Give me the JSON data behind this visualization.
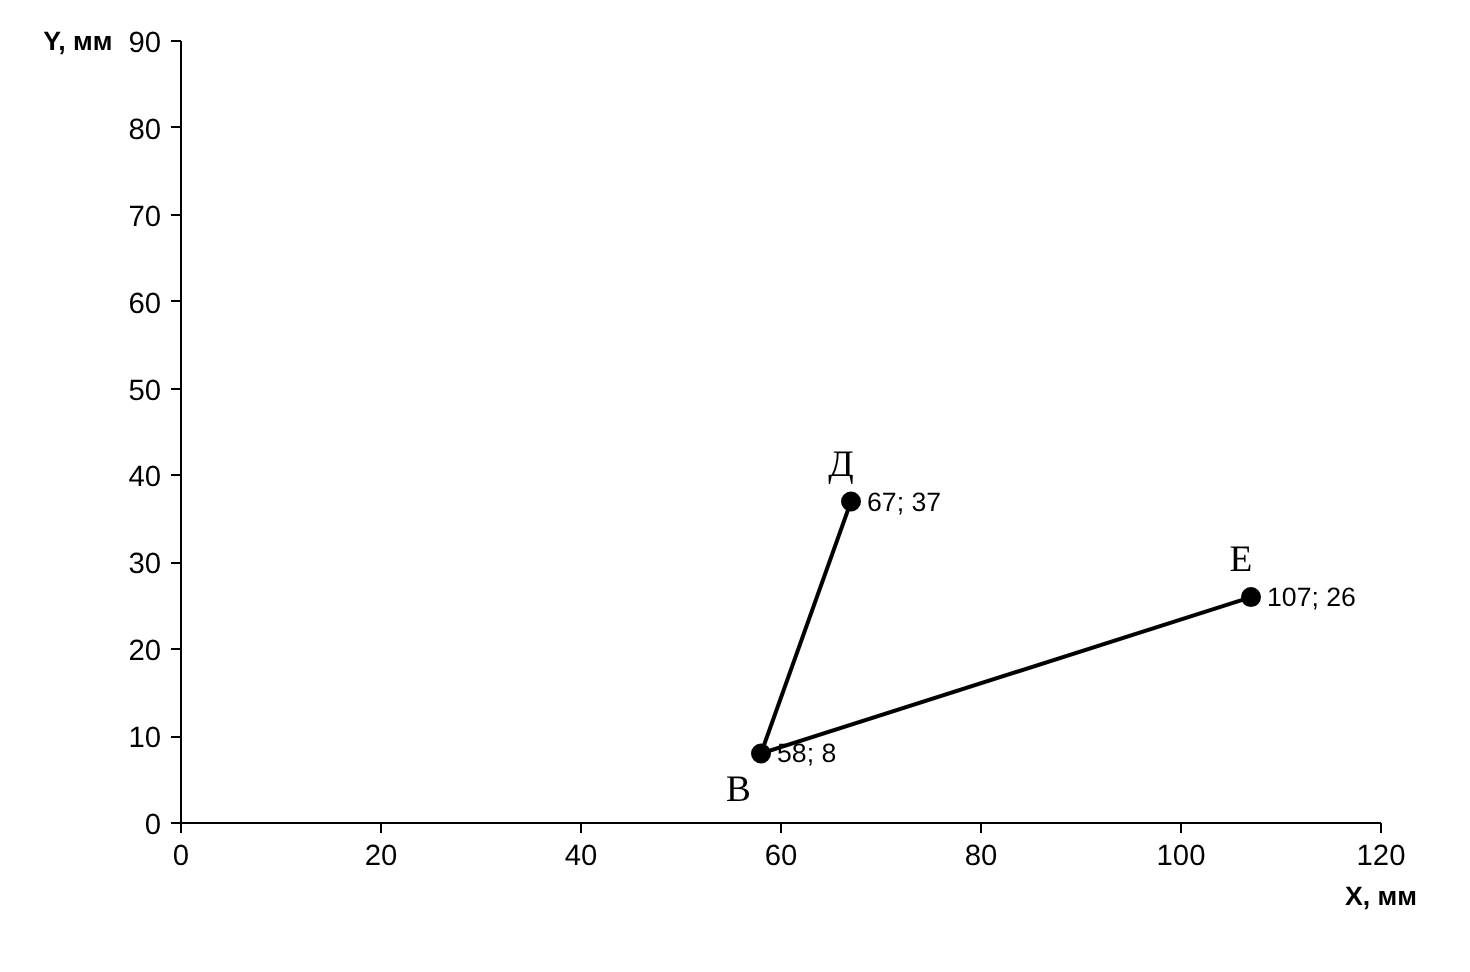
{
  "chart_data": {
    "type": "line",
    "xlabel": "X, мм",
    "ylabel": "Y, мм",
    "xlim": [
      0,
      120
    ],
    "xticks": [
      0,
      20,
      40,
      60,
      80,
      100,
      120
    ],
    "ylim": [
      0,
      90
    ],
    "yticks": [
      0,
      10,
      20,
      30,
      40,
      50,
      60,
      70,
      80,
      90
    ],
    "grid": false,
    "series": [
      {
        "color": "#000000",
        "x": [
          58,
          67
        ],
        "values": [
          8,
          37
        ]
      },
      {
        "color": "#000000",
        "x": [
          58,
          107
        ],
        "values": [
          8,
          26
        ]
      },
      {
        "type": "scatter",
        "color": "#000000",
        "marker": "circle",
        "x": [
          58,
          67,
          107
        ],
        "values": [
          8,
          37,
          26
        ],
        "value_labels": [
          "58; 8",
          "67; 37",
          "107; 26"
        ]
      }
    ],
    "annotations": [
      {
        "text": "В",
        "x": 58,
        "y": 8
      },
      {
        "text": "Д",
        "x": 67,
        "y": 37
      },
      {
        "text": "Е",
        "x": 107,
        "y": 26
      }
    ]
  }
}
